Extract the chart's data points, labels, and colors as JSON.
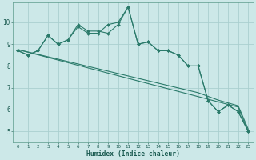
{
  "xlabel": "Humidex (Indice chaleur)",
  "background_color": "#cce8e8",
  "line_color": "#2a7a6a",
  "grid_color": "#aacfcf",
  "xlim": [
    -0.5,
    23.5
  ],
  "ylim": [
    4.5,
    10.9
  ],
  "x": [
    0,
    1,
    2,
    3,
    4,
    5,
    6,
    7,
    8,
    9,
    10,
    11,
    12,
    13,
    14,
    15,
    16,
    17,
    18,
    19,
    20,
    21,
    22,
    23
  ],
  "series1": [
    8.7,
    8.5,
    8.7,
    9.4,
    9.0,
    9.2,
    9.8,
    9.5,
    9.5,
    9.9,
    10.0,
    10.7,
    9.0,
    9.1,
    8.7,
    8.7,
    8.5,
    8.0,
    8.0,
    6.4,
    5.9,
    6.2,
    5.9,
    5.0
  ],
  "series2": [
    8.7,
    8.5,
    8.7,
    9.4,
    9.0,
    9.2,
    9.9,
    9.6,
    9.6,
    9.5,
    9.9,
    10.7,
    9.0,
    9.1,
    8.7,
    8.7,
    8.5,
    8.0,
    8.0,
    6.4,
    5.9,
    6.2,
    5.9,
    5.0
  ],
  "series_linear1": [
    8.75,
    8.63,
    8.51,
    8.39,
    8.27,
    8.15,
    8.03,
    7.91,
    7.79,
    7.67,
    7.55,
    7.43,
    7.31,
    7.19,
    7.07,
    6.95,
    6.83,
    6.71,
    6.59,
    6.47,
    6.35,
    6.23,
    6.11,
    5.0
  ],
  "series_linear2": [
    8.75,
    8.64,
    8.53,
    8.42,
    8.31,
    8.2,
    8.09,
    7.98,
    7.87,
    7.76,
    7.65,
    7.54,
    7.43,
    7.32,
    7.21,
    7.1,
    6.99,
    6.88,
    6.77,
    6.6,
    6.43,
    6.3,
    6.17,
    5.1
  ],
  "yticks": [
    5,
    6,
    7,
    8,
    9,
    10
  ],
  "xtick_labels": [
    "0",
    "1",
    "2",
    "3",
    "4",
    "5",
    "6",
    "7",
    "8",
    "9",
    "10",
    "11",
    "12",
    "13",
    "14",
    "15",
    "16",
    "17",
    "18",
    "19",
    "20",
    "21",
    "22",
    "23"
  ]
}
